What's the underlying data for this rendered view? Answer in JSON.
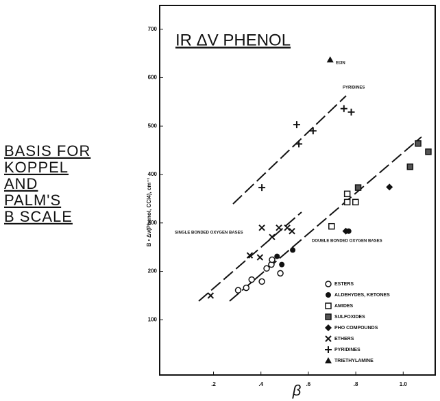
{
  "chart_data": {
    "type": "scatter",
    "title": "IR ΔV PHENOL",
    "side_text": [
      "BASIS FOR",
      "KOPPEL",
      "AND",
      "PALM'S",
      "B SCALE"
    ],
    "ylabel": "B • Δν(Phenol, CCl4), cm⁻¹",
    "xlabel": "β",
    "annotations": [
      "SINGLE BONDED OXYGEN BASES",
      "DOUBLE BONDED OXYGEN BASES",
      "PYRIDINES",
      "Et3N"
    ],
    "xlim": [
      -0.027,
      1.135
    ],
    "ylim": [
      -14,
      749
    ],
    "xticks": [
      {
        "value": 0.2,
        "label": ".2"
      },
      {
        "value": 0.4,
        "label": ".4"
      },
      {
        "value": 0.6,
        "label": ".6"
      },
      {
        "value": 0.8,
        "label": ".8"
      },
      {
        "value": 1.0,
        "label": "1.0"
      }
    ],
    "yticks": [
      100,
      200,
      300,
      400,
      500,
      600,
      700
    ],
    "series": [
      {
        "name": "ESTERS",
        "marker": "open-circle",
        "x": [
          0.304,
          0.338,
          0.361,
          0.404,
          0.424,
          0.444,
          0.482,
          0.447
        ],
        "values": [
          161,
          166,
          183,
          179,
          206,
          214,
          196,
          224
        ]
      },
      {
        "name": "ALDEHYDES, KETONES",
        "marker": "circle",
        "x": [
          0.468,
          0.534,
          0.488,
          0.77
        ],
        "values": [
          231,
          244,
          214,
          283
        ]
      },
      {
        "name": "AMIDES",
        "marker": "open-square",
        "x": [
          0.698,
          0.764,
          0.799,
          0.764
        ],
        "values": [
          293,
          343,
          343,
          360
        ]
      },
      {
        "name": "SULFOXIDES",
        "marker": "hatched-square",
        "x": [
          0.81,
          1.029,
          1.063,
          1.106
        ],
        "values": [
          373,
          416,
          464,
          447
        ]
      },
      {
        "name": "PHO COMPOUNDS",
        "marker": "diamond",
        "x": [
          0.942,
          0.758
        ],
        "values": [
          374,
          283
        ]
      },
      {
        "name": "ETHERS",
        "marker": "x",
        "x": [
          0.188,
          0.353,
          0.396,
          0.404,
          0.447,
          0.476,
          0.511,
          0.531
        ],
        "values": [
          150,
          233,
          229,
          290,
          271,
          290,
          290,
          283
        ]
      },
      {
        "name": "PYRIDINES",
        "marker": "plus",
        "x": [
          0.404,
          0.551,
          0.56,
          0.62,
          0.75,
          0.781
        ],
        "values": [
          373,
          503,
          463,
          490,
          536,
          529
        ]
      },
      {
        "name": "TRIETHYLAMINE",
        "marker": "triangle",
        "x": [
          0.692
        ],
        "values": [
          637
        ]
      }
    ]
  }
}
